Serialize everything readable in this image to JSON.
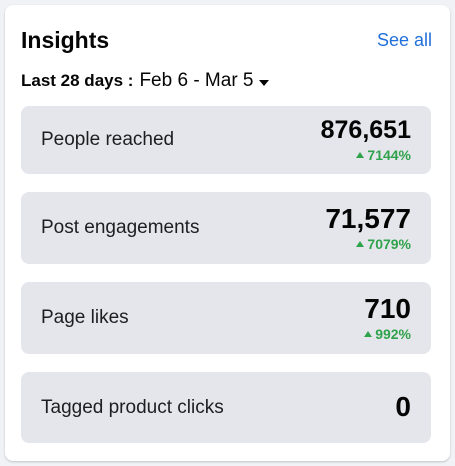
{
  "header": {
    "title": "Insights",
    "see_all": "See all"
  },
  "range": {
    "label": "Last 28 days :",
    "value": "Feb 6 - Mar 5"
  },
  "metrics": [
    {
      "label": "People reached",
      "value": "876,651",
      "change": "7144%"
    },
    {
      "label": "Post engagements",
      "value": "71,577",
      "change": "7079%"
    },
    {
      "label": "Page likes",
      "value": "710",
      "change": "992%"
    },
    {
      "label": "Tagged product clicks",
      "value": "0"
    }
  ],
  "colors": {
    "accent": "#216fdb",
    "positive": "#31a24c",
    "tile": "#e4e6eb"
  }
}
